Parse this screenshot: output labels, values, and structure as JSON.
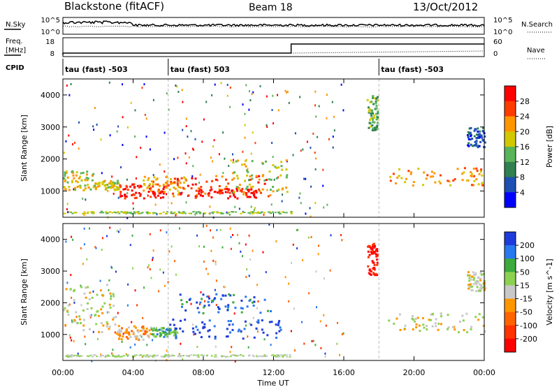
{
  "header": {
    "station": "Blackstone (fitACF)",
    "beam": "Beam 18",
    "date": "13/Oct/2012"
  },
  "sky_panel": {
    "left_label": "N.Sky",
    "right_label": "N.Search",
    "left_ticks": [
      "10^5",
      "10^0"
    ],
    "right_ticks": [
      "10^5",
      "10^0"
    ]
  },
  "freq_panel": {
    "left_label_line1": "Freq.",
    "left_label_line2": "[MHz]",
    "right_label": "Nave",
    "left_ticks": [
      "18",
      "8"
    ],
    "right_ticks": [
      "60",
      "0"
    ]
  },
  "cpid": {
    "label": "CPID",
    "segments": [
      {
        "hour": 0.0,
        "label": "tau (fast) -503"
      },
      {
        "hour": 6.0,
        "label": "tau (fast) 503"
      },
      {
        "hour": 18.0,
        "label": "tau (fast) -503"
      }
    ]
  },
  "time_axis": {
    "xlabel": "Time UT",
    "range_hours": [
      0,
      24
    ],
    "ticks": [
      {
        "hour": 0,
        "label": "00:00"
      },
      {
        "hour": 4,
        "label": "04:00"
      },
      {
        "hour": 8,
        "label": "08:00"
      },
      {
        "hour": 12,
        "label": "12:00"
      },
      {
        "hour": 16,
        "label": "16:00"
      },
      {
        "hour": 20,
        "label": "20:00"
      },
      {
        "hour": 24,
        "label": "00:00"
      }
    ]
  },
  "chart_data": [
    {
      "type": "heatmap",
      "name": "power",
      "xlabel": "Time UT",
      "ylabel": "Slant Range [km]",
      "ylim": [
        180,
        4500
      ],
      "yticks": [
        1000,
        2000,
        3000,
        4000
      ],
      "colorbar": {
        "label": "Power [dB]",
        "tick_labels": [
          "28",
          "24",
          "20",
          "16",
          "12",
          "8",
          "4"
        ],
        "colors": [
          "#ff0000",
          "#ff3c00",
          "#ff9600",
          "#d2c800",
          "#5ab45a",
          "#308050",
          "#1e50b4",
          "#0000ff"
        ]
      },
      "regions": [
        {
          "t": [
            0.0,
            1.8
          ],
          "r": [
            1050,
            1650
          ],
          "level": 3
        },
        {
          "t": [
            1.8,
            3.2
          ],
          "r": [
            1050,
            1350
          ],
          "level": 3
        },
        {
          "t": [
            3.2,
            5.8
          ],
          "r": [
            800,
            1250
          ],
          "level": 0
        },
        {
          "t": [
            4.5,
            7.0
          ],
          "r": [
            1000,
            1500
          ],
          "level": 2
        },
        {
          "t": [
            6.0,
            12.0
          ],
          "r": [
            850,
            1500
          ],
          "level": 1
        },
        {
          "t": [
            7.5,
            11.0
          ],
          "r": [
            800,
            1100
          ],
          "level": 0
        },
        {
          "t": [
            9.5,
            12.8
          ],
          "r": [
            1000,
            2000
          ],
          "level": 3
        },
        {
          "t": [
            17.3,
            17.9
          ],
          "r": [
            2900,
            4000
          ],
          "level": 4
        },
        {
          "t": [
            18.5,
            24.0
          ],
          "r": [
            1200,
            1750
          ],
          "level": 2
        },
        {
          "t": [
            23.0,
            24.0
          ],
          "r": [
            2400,
            3000
          ],
          "level": 6
        }
      ]
    },
    {
      "type": "heatmap",
      "name": "velocity",
      "xlabel": "Time UT",
      "ylabel": "Slant Range [km]",
      "ylim": [
        180,
        4500
      ],
      "yticks": [
        1000,
        2000,
        3000,
        4000
      ],
      "colorbar": {
        "label": "Velocity [m s^-1]",
        "tick_labels": [
          "200",
          "100",
          "50",
          "15",
          "-15",
          "-50",
          "-100",
          "-200"
        ],
        "colors": [
          "#1e3cdc",
          "#2878f0",
          "#3caa3c",
          "#8cd250",
          "#c8c8c8",
          "#ff9600",
          "#ff6400",
          "#ff3200",
          "#ff0000"
        ]
      },
      "regions": [
        {
          "t": [
            0.0,
            3.0
          ],
          "r": [
            1100,
            2600
          ],
          "level": 4
        },
        {
          "t": [
            3.0,
            5.0
          ],
          "r": [
            850,
            1300
          ],
          "level": 5
        },
        {
          "t": [
            5.0,
            6.5
          ],
          "r": [
            950,
            1250
          ],
          "level": 2
        },
        {
          "t": [
            6.0,
            12.5
          ],
          "r": [
            900,
            1500
          ],
          "level": 0
        },
        {
          "t": [
            6.5,
            12.0
          ],
          "r": [
            1700,
            2300
          ],
          "level": 1
        },
        {
          "t": [
            17.3,
            17.9
          ],
          "r": [
            2900,
            3900
          ],
          "level": 8
        },
        {
          "t": [
            18.5,
            24.0
          ],
          "r": [
            1100,
            1700
          ],
          "level": 4
        },
        {
          "t": [
            23.0,
            24.0
          ],
          "r": [
            2400,
            3000
          ],
          "level": 4
        }
      ]
    }
  ]
}
